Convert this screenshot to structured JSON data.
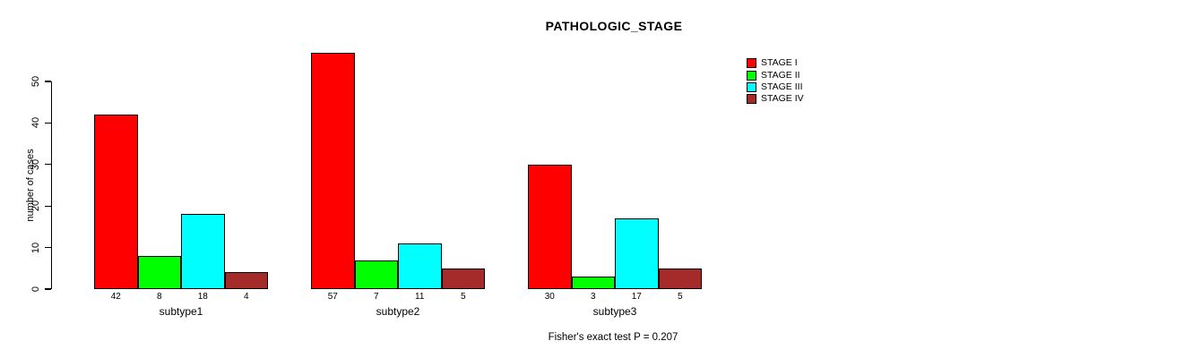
{
  "chart_data": {
    "type": "bar",
    "title": "PATHOLOGIC_STAGE",
    "ylabel": "number of cases",
    "xlabel": "",
    "ylim": [
      0,
      50
    ],
    "yticks": [
      0,
      10,
      20,
      30,
      40,
      50
    ],
    "categories": [
      "subtype1",
      "subtype2",
      "subtype3"
    ],
    "series": [
      {
        "name": "STAGE I",
        "color": "#FF0000",
        "values": [
          42,
          57,
          30
        ]
      },
      {
        "name": "STAGE II",
        "color": "#00FF00",
        "values": [
          8,
          7,
          3
        ]
      },
      {
        "name": "STAGE III",
        "color": "#00FFFF",
        "values": [
          18,
          11,
          17
        ]
      },
      {
        "name": "STAGE IV",
        "color": "#A52A2A",
        "values": [
          4,
          5,
          5
        ]
      }
    ],
    "bar_value_labels_shown": true,
    "legend_position": "top-right",
    "grid": false,
    "axis_color": "#000000",
    "bar_border_color": "#000000",
    "annotation": "Fisher's exact test P = 0.207"
  }
}
